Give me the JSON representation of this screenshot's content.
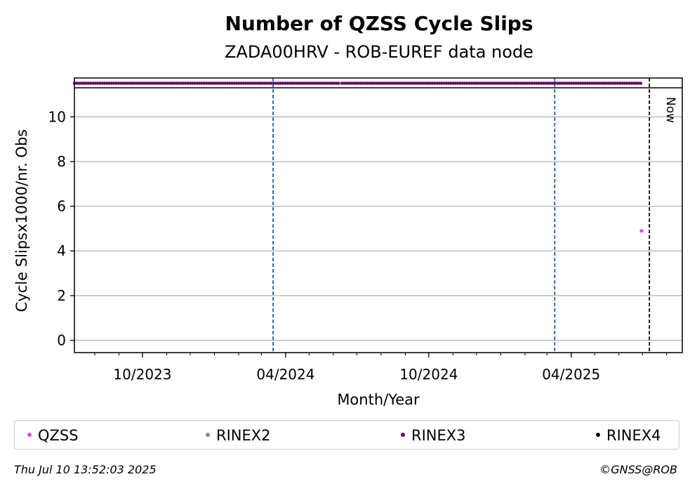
{
  "chart_data": {
    "type": "scatter",
    "title": "Number of QZSS Cycle Slips",
    "subtitle": "ZADA00HRV - ROB-EUREF data node",
    "xlabel": "Month/Year",
    "ylabel": "Cycle Slipsx1000/nr. Obs",
    "xlim": [
      "2023-07-06",
      "2025-08-21"
    ],
    "ylim": [
      -0.55,
      11.3
    ],
    "yticks": [
      0,
      2,
      4,
      6,
      8,
      10
    ],
    "xticks": [
      {
        "date": "2023-10-01",
        "label": "10/2023"
      },
      {
        "date": "2024-04-01",
        "label": "04/2024"
      },
      {
        "date": "2024-10-01",
        "label": "10/2024"
      },
      {
        "date": "2025-04-01",
        "label": "04/2025"
      }
    ],
    "grid": "horizontal",
    "legend_position": "bottom",
    "series": [
      {
        "name": "QZSS",
        "color": "#ee44cc",
        "points": [
          {
            "x": "2025-06-30",
            "y": 4.9
          }
        ]
      },
      {
        "name": "RINEX2",
        "color": "#8080c0",
        "points": []
      },
      {
        "name": "RINEX3",
        "color": "#6a0a6a",
        "band_ranges": [
          [
            "2023-07-06",
            "2024-05-10"
          ],
          [
            "2024-05-12",
            "2024-06-10"
          ],
          [
            "2024-06-12",
            "2025-06-30"
          ]
        ]
      },
      {
        "name": "RINEX4",
        "color": "#1a0020",
        "points": []
      }
    ],
    "vlines": [
      {
        "date": "2024-03-16",
        "color": "#1f5fa8",
        "style": "dashed"
      },
      {
        "date": "2025-03-11",
        "color": "#1f5fa8",
        "style": "dashed"
      },
      {
        "date": "2025-07-10",
        "color": "#000000",
        "style": "dashed",
        "label": "Now"
      }
    ]
  },
  "footer": {
    "timestamp": "Thu Jul 10 13:52:03 2025",
    "credit": "©GNSS@ROB"
  }
}
